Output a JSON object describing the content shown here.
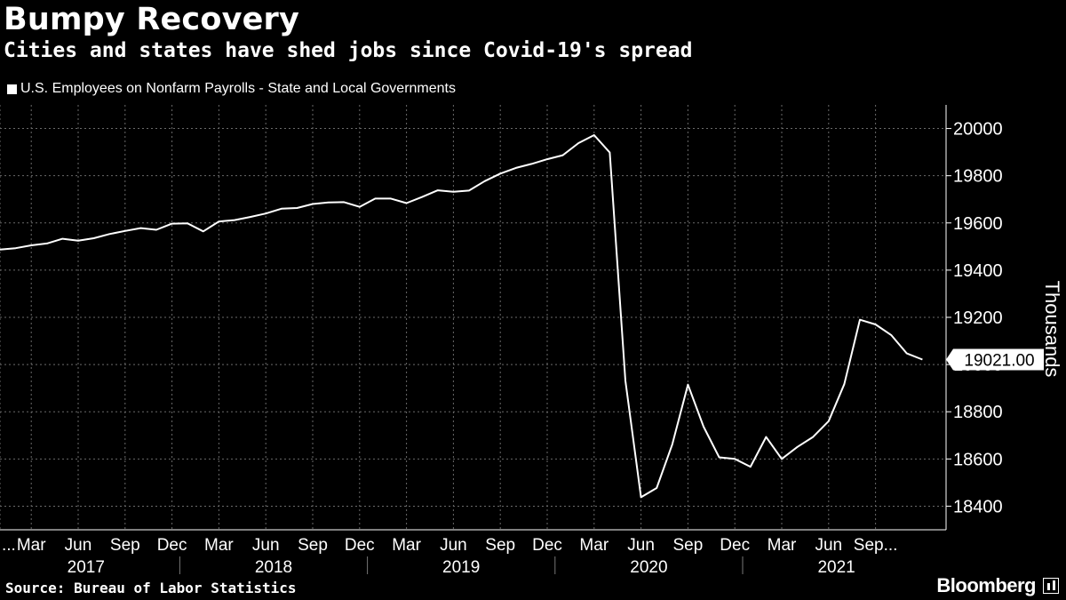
{
  "header": {
    "title": "Bumpy Recovery",
    "subtitle": "Cities and states have shed jobs since Covid-19's spread"
  },
  "footer": {
    "source": "Source: Bureau of Labor Statistics",
    "brand": "Bloomberg"
  },
  "chart_data": {
    "type": "line",
    "title": "Bumpy Recovery",
    "subtitle": "Cities and states have shed jobs since Covid-19's spread",
    "ylabel": "Thousands",
    "xlabel": "",
    "ylim": [
      18300,
      20100
    ],
    "yticks": [
      18400,
      18600,
      18800,
      19000,
      19200,
      19400,
      19600,
      19800,
      20000
    ],
    "grid": true,
    "legend_position": "top-left",
    "last_value_label": "19021.00",
    "x_month_labels": [
      "...",
      "Mar",
      "Jun",
      "Sep",
      "Dec",
      "Mar",
      "Jun",
      "Sep",
      "Dec",
      "Mar",
      "Jun",
      "Sep",
      "Dec",
      "Mar",
      "Jun",
      "Sep",
      "Dec",
      "Mar",
      "Jun",
      "Sep..."
    ],
    "x_month_indices": [
      0,
      2,
      5,
      8,
      11,
      14,
      17,
      20,
      23,
      26,
      29,
      32,
      35,
      38,
      41,
      44,
      47,
      50,
      53,
      56
    ],
    "x_year_labels": [
      "2017",
      "2018",
      "2019",
      "2020",
      "2021"
    ],
    "x_year_centers": [
      5.5,
      17.5,
      29.5,
      41.5,
      53.5
    ],
    "x_year_separators": [
      11.5,
      23.5,
      35.5,
      47.5
    ],
    "series": [
      {
        "name": "U.S. Employees on Nonfarm Payrolls - State and Local Governments",
        "start": "Jan 2017",
        "values": [
          19487,
          19493,
          19505,
          19513,
          19533,
          19525,
          19535,
          19553,
          19566,
          19578,
          19571,
          19597,
          19598,
          19564,
          19606,
          19612,
          19625,
          19640,
          19660,
          19663,
          19680,
          19687,
          19688,
          19668,
          19703,
          19703,
          19684,
          19710,
          19738,
          19732,
          19737,
          19777,
          19809,
          19833,
          19850,
          19870,
          19887,
          19938,
          19972,
          19898,
          18932,
          18438,
          18477,
          18662,
          18915,
          18737,
          18607,
          18600,
          18567,
          18693,
          18600,
          18651,
          18693,
          18760,
          18917,
          19190,
          19170,
          19125,
          19047,
          19021
        ]
      }
    ]
  }
}
